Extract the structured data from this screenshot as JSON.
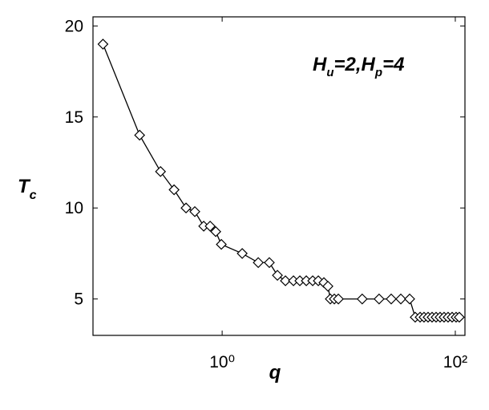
{
  "chart_data": {
    "type": "line",
    "ylabel": [
      "T",
      "c"
    ],
    "xlabel": "q",
    "annotation": [
      "H",
      "u",
      "=2,",
      "H",
      "p",
      "=4"
    ],
    "xscale": "log",
    "xlim": [
      0.078,
      121
    ],
    "ylim": [
      3,
      20.5
    ],
    "xticks": [
      {
        "value": 1,
        "label": "10⁰"
      },
      {
        "value": 100,
        "label": "10²"
      }
    ],
    "yticks": [
      5,
      10,
      15,
      20
    ],
    "color": "#000000",
    "marker": "diamond",
    "x": [
      0.095,
      0.196,
      0.296,
      0.387,
      0.49,
      0.583,
      0.695,
      0.789,
      0.881,
      0.984,
      1.486,
      2.04,
      2.54,
      2.98,
      3.49,
      4.09,
      4.64,
      5.27,
      5.98,
      6.68,
      7.46,
      8.08,
      8.47,
      9.17,
      9.93,
      15.9,
      22.2,
      28.2,
      34.1,
      40.6,
      45.3,
      49.9,
      53.9,
      58.4,
      63.2,
      68.4,
      74,
      80.1,
      86.7,
      93.9,
      101.6,
      108.2
    ],
    "values": [
      19,
      14,
      12,
      11,
      10,
      9.8,
      9,
      9,
      8.7,
      8,
      7.5,
      7,
      7,
      6.3,
      6,
      6,
      6,
      6,
      6,
      6,
      5.9,
      5.7,
      5,
      5,
      5,
      5,
      5,
      5,
      5,
      5,
      4,
      4,
      4,
      4,
      4,
      4,
      4,
      4,
      4,
      4,
      4,
      4
    ]
  }
}
